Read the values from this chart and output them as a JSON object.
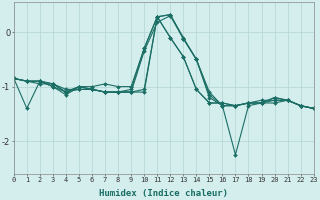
{
  "xlabel": "Humidex (Indice chaleur)",
  "bg_color": "#d4eeee",
  "grid_color": "#b8d8d8",
  "line_color": "#1a6e64",
  "series_x": [
    0,
    1,
    2,
    3,
    4,
    5,
    6,
    7,
    8,
    9,
    10,
    11,
    12,
    13,
    14,
    15,
    16,
    17,
    18,
    19,
    20,
    21,
    22,
    23
  ],
  "series": [
    [
      -0.85,
      -1.4,
      -0.9,
      -1.0,
      -1.15,
      -1.0,
      -1.0,
      -0.95,
      -1.0,
      -1.0,
      -0.3,
      0.28,
      0.32,
      -0.12,
      -0.5,
      -1.2,
      -1.35,
      -2.25,
      -1.35,
      -1.3,
      -1.3,
      -1.25,
      -1.35,
      -1.4
    ],
    [
      -0.85,
      -0.9,
      -0.9,
      -0.95,
      -1.05,
      -1.05,
      -1.05,
      -1.1,
      -1.1,
      -1.1,
      -1.05,
      0.28,
      -0.1,
      -0.45,
      -1.05,
      -1.3,
      -1.3,
      -1.35,
      -1.3,
      -1.3,
      -1.2,
      -1.25,
      -1.35,
      -1.4
    ],
    [
      -0.85,
      -0.9,
      -0.9,
      -0.95,
      -1.1,
      -1.05,
      -1.05,
      -1.1,
      -1.1,
      -1.1,
      -1.1,
      0.28,
      -0.1,
      -0.45,
      -1.05,
      -1.3,
      -1.3,
      -1.35,
      -1.3,
      -1.3,
      -1.2,
      -1.25,
      -1.35,
      -1.4
    ],
    [
      -0.85,
      -0.9,
      -0.95,
      -0.95,
      -1.1,
      -1.0,
      -1.05,
      -1.1,
      -1.1,
      -1.1,
      -0.35,
      0.18,
      0.3,
      -0.12,
      -0.5,
      -1.15,
      -1.35,
      -1.35,
      -1.3,
      -1.3,
      -1.25,
      -1.25,
      -1.35,
      -1.4
    ],
    [
      -0.85,
      -0.9,
      -0.9,
      -1.0,
      -1.1,
      -1.0,
      -1.05,
      -1.1,
      -1.1,
      -1.05,
      -0.3,
      0.28,
      0.32,
      -0.1,
      -0.5,
      -1.1,
      -1.35,
      -1.35,
      -1.3,
      -1.25,
      -1.25,
      -1.25,
      -1.35,
      -1.4
    ]
  ],
  "xlim": [
    0,
    23
  ],
  "ylim": [
    -2.6,
    0.55
  ],
  "yticks": [
    0,
    -1,
    -2
  ],
  "xticks": [
    0,
    1,
    2,
    3,
    4,
    5,
    6,
    7,
    8,
    9,
    10,
    11,
    12,
    13,
    14,
    15,
    16,
    17,
    18,
    19,
    20,
    21,
    22,
    23
  ],
  "tick_fontsize": 5.0,
  "xlabel_fontsize": 6.5,
  "marker_size": 2.0,
  "linewidth": 0.8
}
